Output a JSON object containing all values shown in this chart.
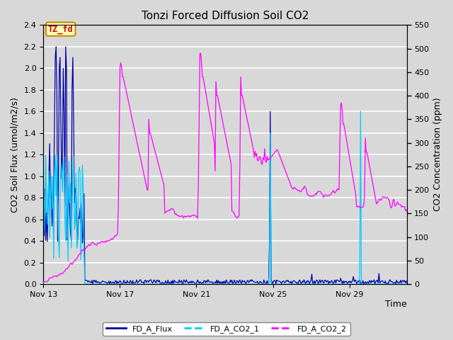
{
  "title": "Tonzi Forced Diffusion Soil CO2",
  "xlabel": "Time",
  "ylabel_left": "CO2 Soil Flux (umol/m2/s)",
  "ylabel_right": "CO2 Concentration (ppm)",
  "ylim_left": [
    0,
    2.4
  ],
  "ylim_right": [
    0,
    550
  ],
  "yticks_left": [
    0.0,
    0.2,
    0.4,
    0.6,
    0.8,
    1.0,
    1.2,
    1.4,
    1.6,
    1.8,
    2.0,
    2.2,
    2.4
  ],
  "yticks_right": [
    0,
    50,
    100,
    150,
    200,
    250,
    300,
    350,
    400,
    450,
    500,
    550
  ],
  "xtick_labels": [
    "Nov 13",
    "Nov 17",
    "Nov 21",
    "Nov 25",
    "Nov 29"
  ],
  "xtick_positions": [
    0,
    4,
    8,
    12,
    16
  ],
  "xlim": [
    0,
    19
  ],
  "background_color": "#d8d8d8",
  "plot_bg_color": "#d8d8d8",
  "fig_bg_color": "#d8d8d8",
  "flux_color": "#0000aa",
  "co2_1_color": "#00ccff",
  "co2_2_color": "#ff00ff",
  "grid_color": "#ffffff",
  "legend_items": [
    "FD_A_Flux",
    "FD_A_CO2_1",
    "FD_A_CO2_2"
  ],
  "tag_text": "TZ_fd",
  "tag_bg": "#ffffbb",
  "tag_border": "#cc8800",
  "tag_text_color": "#cc0000",
  "title_fontsize": 11,
  "axis_fontsize": 9,
  "tick_fontsize": 8,
  "legend_fontsize": 8
}
